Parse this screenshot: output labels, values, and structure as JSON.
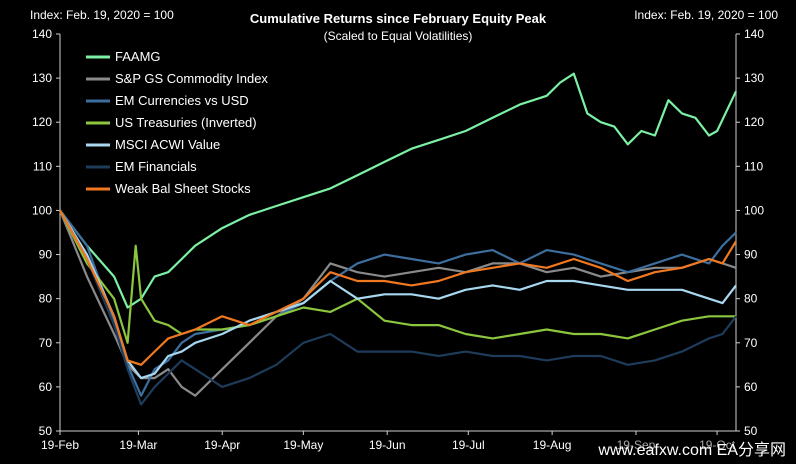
{
  "header": {
    "left_label": "Index: Feb. 19, 2020 = 100",
    "right_label": "Index: Feb. 19, 2020 = 100"
  },
  "watermark": "www.eafxw.com  EA分享网",
  "chart_data": {
    "type": "line",
    "title": "Cumulative Returns since February Equity Peak",
    "subtitle": "(Scaled to Equal Volatilities)",
    "ylim": [
      50,
      140
    ],
    "yticks": [
      50,
      60,
      70,
      80,
      90,
      100,
      110,
      120,
      130,
      140
    ],
    "xlim": [
      0,
      250
    ],
    "x_ticks": [
      {
        "label": "19-Feb",
        "x": 0
      },
      {
        "label": "19-Mar",
        "x": 29
      },
      {
        "label": "19-Apr",
        "x": 60
      },
      {
        "label": "19-May",
        "x": 90
      },
      {
        "label": "19-Jun",
        "x": 121
      },
      {
        "label": "19-Jul",
        "x": 151
      },
      {
        "label": "19-Aug",
        "x": 182
      },
      {
        "label": "19-Sep",
        "x": 213
      },
      {
        "label": "19-Oct",
        "x": 243
      }
    ],
    "grid": false,
    "legend": "top-left",
    "series": [
      {
        "name": "FAAMG",
        "color": "#7cf0a4",
        "x": [
          0,
          10,
          20,
          25,
          30,
          35,
          40,
          45,
          50,
          60,
          70,
          80,
          90,
          100,
          110,
          120,
          130,
          140,
          150,
          160,
          170,
          180,
          185,
          190,
          195,
          200,
          205,
          210,
          215,
          220,
          225,
          230,
          235,
          240,
          243,
          250
        ],
        "values": [
          100,
          92,
          85,
          78,
          80,
          85,
          86,
          89,
          92,
          96,
          99,
          101,
          103,
          105,
          108,
          111,
          114,
          116,
          118,
          121,
          124,
          126,
          129,
          131,
          122,
          120,
          119,
          115,
          118,
          117,
          125,
          122,
          121,
          117,
          118,
          127
        ]
      },
      {
        "name": "S&P GS Commodity Index",
        "color": "#8a8a8a",
        "x": [
          0,
          10,
          20,
          25,
          30,
          35,
          40,
          45,
          50,
          60,
          70,
          80,
          90,
          100,
          110,
          120,
          130,
          140,
          150,
          160,
          170,
          180,
          190,
          200,
          210,
          220,
          230,
          240,
          250
        ],
        "values": [
          100,
          85,
          72,
          65,
          62,
          62,
          64,
          60,
          58,
          64,
          70,
          76,
          80,
          88,
          86,
          85,
          86,
          87,
          86,
          88,
          88,
          86,
          87,
          85,
          86,
          87,
          87,
          89,
          87
        ]
      },
      {
        "name": "EM Currencies vs USD",
        "color": "#3d6e9e",
        "x": [
          0,
          10,
          20,
          25,
          30,
          35,
          40,
          45,
          50,
          60,
          70,
          80,
          90,
          100,
          110,
          120,
          130,
          140,
          150,
          160,
          170,
          180,
          190,
          200,
          210,
          220,
          230,
          240,
          245,
          250
        ],
        "values": [
          100,
          92,
          75,
          65,
          58,
          64,
          66,
          70,
          72,
          73,
          74,
          76,
          79,
          84,
          88,
          90,
          89,
          88,
          90,
          91,
          88,
          91,
          90,
          88,
          86,
          88,
          90,
          88,
          92,
          95
        ]
      },
      {
        "name": "US Treasuries (Inverted)",
        "color": "#8cc63f",
        "x": [
          0,
          10,
          20,
          25,
          28,
          30,
          35,
          40,
          45,
          50,
          60,
          70,
          80,
          90,
          100,
          110,
          120,
          130,
          140,
          150,
          160,
          170,
          180,
          190,
          200,
          210,
          220,
          230,
          240,
          250
        ],
        "values": [
          100,
          88,
          80,
          70,
          92,
          80,
          75,
          74,
          72,
          73,
          73,
          74,
          76,
          78,
          77,
          80,
          75,
          74,
          74,
          72,
          71,
          72,
          73,
          72,
          72,
          71,
          73,
          75,
          76,
          76
        ]
      },
      {
        "name": "MSCI ACWI Value",
        "color": "#a8d8f0",
        "x": [
          0,
          10,
          20,
          25,
          30,
          35,
          40,
          45,
          50,
          60,
          70,
          80,
          90,
          100,
          110,
          120,
          130,
          140,
          150,
          160,
          170,
          180,
          190,
          200,
          210,
          220,
          230,
          240,
          245,
          250
        ],
        "values": [
          100,
          90,
          76,
          66,
          62,
          63,
          67,
          68,
          70,
          72,
          75,
          77,
          79,
          84,
          80,
          81,
          81,
          80,
          82,
          83,
          82,
          84,
          84,
          83,
          82,
          82,
          82,
          80,
          79,
          83
        ]
      },
      {
        "name": "EM Financials",
        "color": "#1e3c5a",
        "x": [
          0,
          10,
          20,
          25,
          30,
          35,
          40,
          45,
          50,
          60,
          70,
          80,
          90,
          100,
          110,
          120,
          130,
          140,
          150,
          160,
          170,
          180,
          190,
          200,
          210,
          220,
          230,
          240,
          245,
          250
        ],
        "values": [
          100,
          89,
          74,
          64,
          56,
          60,
          63,
          66,
          64,
          60,
          62,
          65,
          70,
          72,
          68,
          68,
          68,
          67,
          68,
          67,
          67,
          66,
          67,
          67,
          65,
          66,
          68,
          71,
          72,
          76
        ]
      },
      {
        "name": "Weak Bal Sheet Stocks",
        "color": "#f07820",
        "x": [
          0,
          10,
          20,
          25,
          30,
          35,
          40,
          45,
          50,
          60,
          70,
          80,
          90,
          100,
          110,
          120,
          130,
          140,
          150,
          160,
          170,
          180,
          190,
          200,
          210,
          220,
          230,
          240,
          245,
          250
        ],
        "values": [
          100,
          89,
          76,
          66,
          65,
          68,
          71,
          72,
          73,
          76,
          74,
          77,
          80,
          86,
          84,
          84,
          83,
          84,
          86,
          87,
          88,
          87,
          89,
          87,
          84,
          86,
          87,
          89,
          88,
          93
        ]
      }
    ]
  }
}
